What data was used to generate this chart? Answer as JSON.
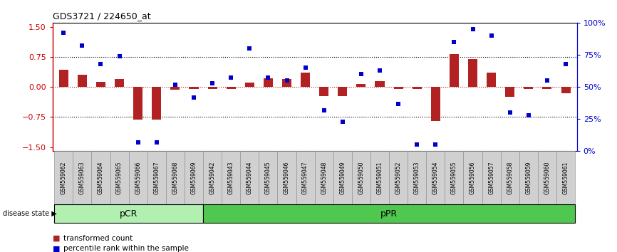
{
  "title": "GDS3721 / 224650_at",
  "samples": [
    "GSM559062",
    "GSM559063",
    "GSM559064",
    "GSM559065",
    "GSM559066",
    "GSM559067",
    "GSM559068",
    "GSM559069",
    "GSM559042",
    "GSM559043",
    "GSM559044",
    "GSM559045",
    "GSM559046",
    "GSM559047",
    "GSM559048",
    "GSM559049",
    "GSM559050",
    "GSM559051",
    "GSM559052",
    "GSM559053",
    "GSM559054",
    "GSM559055",
    "GSM559056",
    "GSM559057",
    "GSM559058",
    "GSM559059",
    "GSM559060",
    "GSM559061"
  ],
  "transformed_count": [
    0.42,
    0.3,
    0.12,
    0.2,
    -0.82,
    -0.82,
    -0.07,
    -0.05,
    -0.05,
    -0.05,
    0.1,
    0.22,
    0.2,
    0.35,
    -0.22,
    -0.22,
    0.08,
    0.14,
    -0.05,
    -0.05,
    -0.84,
    0.82,
    0.7,
    0.35,
    -0.25,
    -0.05,
    -0.05,
    -0.16
  ],
  "percentile_rank": [
    92,
    82,
    68,
    74,
    7,
    7,
    52,
    42,
    53,
    57,
    80,
    57,
    55,
    65,
    32,
    23,
    60,
    63,
    37,
    5,
    5,
    85,
    95,
    90,
    30,
    28,
    55,
    68
  ],
  "pCR_count": 8,
  "pPR_count": 20,
  "bar_color": "#b22222",
  "dot_color": "#0000cd",
  "background_color": "#ffffff",
  "pCR_color": "#b2f0b2",
  "pPR_color": "#50c850",
  "tick_box_color": "#d0d0d0",
  "tick_box_edge_color": "#888888",
  "axis_label_color_left": "#cc0000",
  "axis_label_color_right": "#0000cd",
  "yticks_left": [
    -1.5,
    -0.75,
    0.0,
    0.75,
    1.5
  ],
  "yticks_right": [
    0,
    25,
    50,
    75,
    100
  ],
  "ylim_left": [
    -1.6,
    1.6
  ],
  "ylim_right": [
    0,
    100
  ],
  "legend_transformed": "transformed count",
  "legend_percentile": "percentile rank within the sample",
  "disease_state_label": "disease state",
  "pCR_label": "pCR",
  "pPR_label": "pPR"
}
